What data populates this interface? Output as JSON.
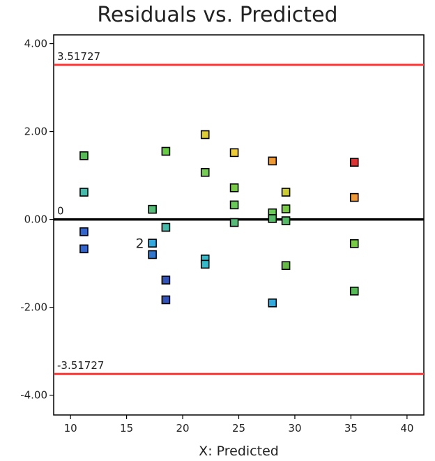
{
  "chart_data": {
    "type": "scatter",
    "title": "Residuals vs. Predicted",
    "xlabel": "X: Predicted",
    "ylabel": "",
    "xlim": [
      8.5,
      41.5
    ],
    "ylim": [
      -4.45,
      4.2
    ],
    "x_ticks": [
      10,
      15,
      20,
      25,
      30,
      35,
      40
    ],
    "y_ticks": [
      4.0,
      2.0,
      0.0,
      -2.0,
      -4.0
    ],
    "y_tick_labels": [
      "4.00",
      "2.00",
      "0.00",
      "-2.00",
      "-4.00"
    ],
    "reference_lines": [
      {
        "y": 3.51727,
        "label": "3.51727",
        "color": "#ff3333"
      },
      {
        "y": 0,
        "label": "0",
        "color": "#000000"
      },
      {
        "y": -3.51727,
        "label": "-3.51727",
        "color": "#ff3333"
      }
    ],
    "points": [
      {
        "x": 11.2,
        "y": 1.45,
        "color": "#55bb55"
      },
      {
        "x": 11.2,
        "y": 0.62,
        "color": "#44bbaa"
      },
      {
        "x": 11.2,
        "y": -0.28,
        "color": "#3366cc"
      },
      {
        "x": 11.2,
        "y": -0.67,
        "color": "#3366cc"
      },
      {
        "x": 17.3,
        "y": 0.23,
        "color": "#55bb77"
      },
      {
        "x": 17.3,
        "y": -0.54,
        "color": "#33aadd"
      },
      {
        "x": 17.3,
        "y": -0.8,
        "color": "#3377cc"
      },
      {
        "x": 18.5,
        "y": 1.55,
        "color": "#66cc44"
      },
      {
        "x": 18.5,
        "y": -0.18,
        "color": "#44bbaa"
      },
      {
        "x": 18.5,
        "y": -1.38,
        "color": "#3355bb"
      },
      {
        "x": 18.5,
        "y": -1.83,
        "color": "#3355bb"
      },
      {
        "x": 22.0,
        "y": 1.93,
        "color": "#ddcc33"
      },
      {
        "x": 22.0,
        "y": 1.07,
        "color": "#77cc55"
      },
      {
        "x": 22.0,
        "y": -0.9,
        "color": "#33bbcc"
      },
      {
        "x": 22.0,
        "y": -1.02,
        "color": "#33bbcc"
      },
      {
        "x": 24.6,
        "y": 1.52,
        "color": "#eecc33"
      },
      {
        "x": 24.6,
        "y": 0.72,
        "color": "#77cc44"
      },
      {
        "x": 24.6,
        "y": 0.33,
        "color": "#66cc55"
      },
      {
        "x": 24.6,
        "y": -0.07,
        "color": "#55bb77"
      },
      {
        "x": 28.0,
        "y": 1.33,
        "color": "#ee9933"
      },
      {
        "x": 28.0,
        "y": 0.15,
        "color": "#66cc55"
      },
      {
        "x": 28.0,
        "y": 0.02,
        "color": "#55bb66"
      },
      {
        "x": 28.0,
        "y": -1.9,
        "color": "#33aadd"
      },
      {
        "x": 29.2,
        "y": 0.62,
        "color": "#cccc33"
      },
      {
        "x": 29.2,
        "y": 0.24,
        "color": "#77cc44"
      },
      {
        "x": 29.2,
        "y": -0.03,
        "color": "#55bb66"
      },
      {
        "x": 29.2,
        "y": -1.05,
        "color": "#66bb44"
      },
      {
        "x": 35.3,
        "y": 1.3,
        "color": "#dd3333"
      },
      {
        "x": 35.3,
        "y": 0.5,
        "color": "#ee9933"
      },
      {
        "x": 35.3,
        "y": -0.55,
        "color": "#77cc44"
      },
      {
        "x": 35.3,
        "y": -1.63,
        "color": "#55bb55"
      }
    ],
    "point_annotations": [
      {
        "text": "2",
        "x": 17.3,
        "y": -0.54
      }
    ],
    "grid": false,
    "legend": "none"
  }
}
